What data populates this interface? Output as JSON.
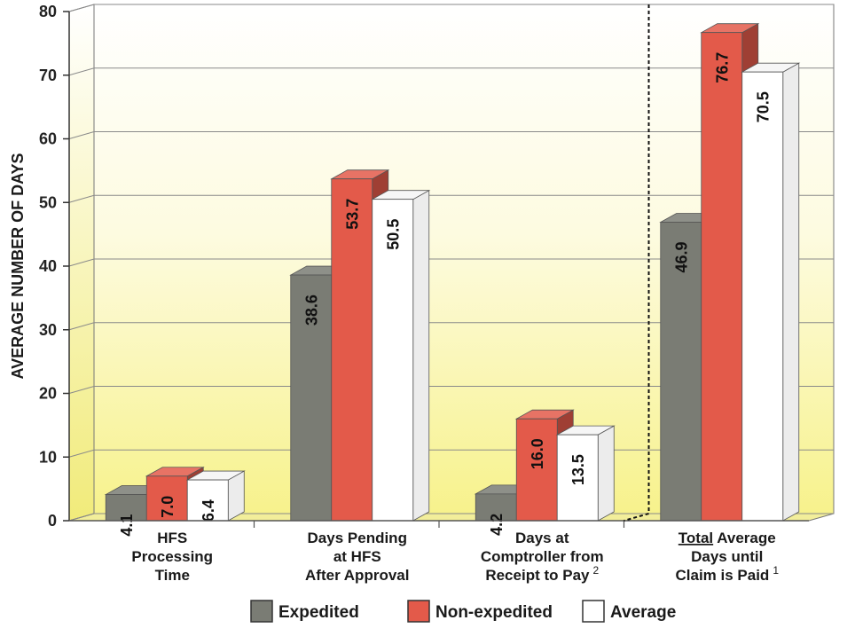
{
  "chart_data": {
    "type": "bar",
    "ylabel": "AVERAGE NUMBER OF DAYS",
    "ylim": [
      0,
      80
    ],
    "yticks": [
      0,
      10,
      20,
      30,
      40,
      50,
      60,
      70,
      80
    ],
    "grid": true,
    "legend_position": "bottom",
    "categories": [
      {
        "lines": [
          "HFS",
          "Processing",
          "Time"
        ]
      },
      {
        "lines": [
          "Days Pending",
          "at HFS",
          "After Approval"
        ]
      },
      {
        "lines": [
          "Days at",
          "Comptroller from",
          "Receipt to Pay"
        ],
        "note": "2"
      },
      {
        "lines": [
          "Total Average",
          "Days until",
          "Claim is Paid"
        ],
        "underline_prefix": "Total",
        "note": "1"
      }
    ],
    "series": [
      {
        "name": "Expedited",
        "color": "#7a7c74",
        "values": [
          4.1,
          38.6,
          4.2,
          46.9
        ],
        "labels": [
          "4.1",
          "38.6",
          "4.2",
          "46.9"
        ]
      },
      {
        "name": "Non-expedited",
        "color": "#e35a4a",
        "values": [
          7.0,
          53.7,
          16.0,
          76.7
        ],
        "labels": [
          "7.0",
          "53.7",
          "16.0",
          "76.7"
        ]
      },
      {
        "name": "Average",
        "color": "#ffffff",
        "values": [
          6.4,
          50.5,
          13.5,
          70.5
        ],
        "labels": [
          "6.4",
          "50.5",
          "13.5",
          "70.5"
        ]
      }
    ]
  }
}
